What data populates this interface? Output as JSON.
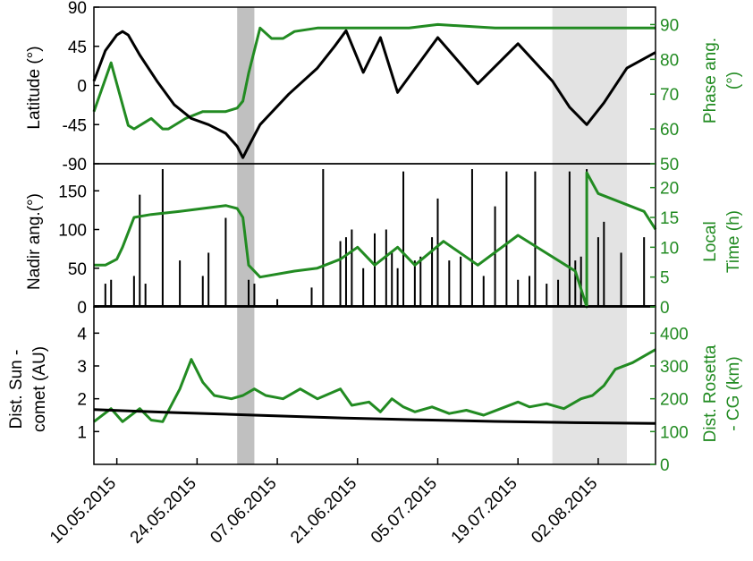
{
  "chart_data": {
    "type": "line",
    "x_start": "2015-05-06",
    "x_end": "2015-08-12",
    "x_ticks": [
      "10.05.2015",
      "24.05.2015",
      "07.06.2015",
      "21.06.2015",
      "05.07.2015",
      "19.07.2015",
      "02.08.2015"
    ],
    "x_tick_dates": [
      "2015-05-10",
      "2015-05-24",
      "2015-06-07",
      "2015-06-21",
      "2015-07-05",
      "2015-07-19",
      "2015-08-02"
    ],
    "shaded_periods": [
      {
        "start": "2015-05-31",
        "end": "2015-06-03",
        "color": "#c0c0c0"
      },
      {
        "start": "2015-07-25",
        "end": "2015-08-07",
        "color": "#e3e3e3"
      }
    ],
    "colors": {
      "left_series": "#000000",
      "right_series": "#228b22"
    },
    "panels": [
      {
        "left_axis": {
          "label": "Latitude (°)",
          "range": [
            -90,
            90
          ],
          "ticks": [
            90,
            45,
            0,
            -45,
            -90
          ]
        },
        "right_axis": {
          "label": [
            "Phase ang.",
            "(°)"
          ],
          "range": [
            50,
            95
          ],
          "ticks": [
            90,
            80,
            70,
            60,
            50
          ]
        },
        "left_series": [
          [
            "2015-05-06",
            5
          ],
          [
            "2015-05-08",
            40
          ],
          [
            "2015-05-10",
            58
          ],
          [
            "2015-05-11",
            62
          ],
          [
            "2015-05-12",
            58
          ],
          [
            "2015-05-14",
            35
          ],
          [
            "2015-05-17",
            5
          ],
          [
            "2015-05-20",
            -22
          ],
          [
            "2015-05-23",
            -38
          ],
          [
            "2015-05-26",
            -45
          ],
          [
            "2015-05-29",
            -55
          ],
          [
            "2015-05-31",
            -70
          ],
          [
            "2015-06-01",
            -83
          ],
          [
            "2015-06-02",
            -70
          ],
          [
            "2015-06-04",
            -45
          ],
          [
            "2015-06-09",
            -10
          ],
          [
            "2015-06-14",
            20
          ],
          [
            "2015-06-17",
            45
          ],
          [
            "2015-06-19",
            63
          ],
          [
            "2015-06-22",
            15
          ],
          [
            "2015-06-25",
            55
          ],
          [
            "2015-06-28",
            -8
          ],
          [
            "2015-07-05",
            55
          ],
          [
            "2015-07-12",
            2
          ],
          [
            "2015-07-19",
            48
          ],
          [
            "2015-07-25",
            5
          ],
          [
            "2015-07-28",
            -25
          ],
          [
            "2015-07-31",
            -45
          ],
          [
            "2015-08-03",
            -20
          ],
          [
            "2015-08-07",
            20
          ],
          [
            "2015-08-12",
            38
          ]
        ],
        "right_series": [
          [
            "2015-05-06",
            65
          ],
          [
            "2015-05-09",
            79
          ],
          [
            "2015-05-12",
            61
          ],
          [
            "2015-05-13",
            60
          ],
          [
            "2015-05-15",
            62
          ],
          [
            "2015-05-16",
            63
          ],
          [
            "2015-05-18",
            60
          ],
          [
            "2015-05-19",
            60
          ],
          [
            "2015-05-22",
            63
          ],
          [
            "2015-05-25",
            65
          ],
          [
            "2015-05-29",
            65
          ],
          [
            "2015-05-31",
            66
          ],
          [
            "2015-06-01",
            68
          ],
          [
            "2015-06-02",
            76
          ],
          [
            "2015-06-04",
            89
          ],
          [
            "2015-06-06",
            86
          ],
          [
            "2015-06-08",
            86
          ],
          [
            "2015-06-10",
            88
          ],
          [
            "2015-06-14",
            89
          ],
          [
            "2015-06-20",
            89
          ],
          [
            "2015-06-30",
            89
          ],
          [
            "2015-07-05",
            90
          ],
          [
            "2015-07-15",
            89
          ],
          [
            "2015-07-25",
            89
          ],
          [
            "2015-08-05",
            89
          ],
          [
            "2015-08-12",
            89
          ]
        ]
      },
      {
        "left_axis": {
          "label": "Nadir ang.(°)",
          "range": [
            0,
            185
          ],
          "ticks": [
            150,
            100,
            50,
            0
          ]
        },
        "right_axis": {
          "label": [
            "Local",
            "Time (h)"
          ],
          "range": [
            0,
            24
          ],
          "ticks": [
            20,
            15,
            10,
            5,
            0
          ]
        },
        "left_spikes": [
          [
            "2015-05-08",
            30
          ],
          [
            "2015-05-09",
            35
          ],
          [
            "2015-05-13",
            40
          ],
          [
            "2015-05-14",
            145
          ],
          [
            "2015-05-15",
            30
          ],
          [
            "2015-05-18",
            178
          ],
          [
            "2015-05-21",
            60
          ],
          [
            "2015-05-25",
            40
          ],
          [
            "2015-05-26",
            70
          ],
          [
            "2015-05-29",
            115
          ],
          [
            "2015-06-02",
            35
          ],
          [
            "2015-06-03",
            30
          ],
          [
            "2015-06-07",
            10
          ],
          [
            "2015-06-13",
            25
          ],
          [
            "2015-06-15",
            178
          ],
          [
            "2015-06-18",
            85
          ],
          [
            "2015-06-19",
            90
          ],
          [
            "2015-06-20",
            100
          ],
          [
            "2015-06-22",
            50
          ],
          [
            "2015-06-24",
            95
          ],
          [
            "2015-06-26",
            100
          ],
          [
            "2015-06-27",
            70
          ],
          [
            "2015-06-28",
            50
          ],
          [
            "2015-06-29",
            175
          ],
          [
            "2015-07-01",
            60
          ],
          [
            "2015-07-02",
            65
          ],
          [
            "2015-07-04",
            90
          ],
          [
            "2015-07-05",
            140
          ],
          [
            "2015-07-07",
            60
          ],
          [
            "2015-07-09",
            65
          ],
          [
            "2015-07-11",
            178
          ],
          [
            "2015-07-13",
            40
          ],
          [
            "2015-07-15",
            130
          ],
          [
            "2015-07-17",
            175
          ],
          [
            "2015-07-19",
            35
          ],
          [
            "2015-07-21",
            40
          ],
          [
            "2015-07-22",
            175
          ],
          [
            "2015-07-24",
            30
          ],
          [
            "2015-07-26",
            35
          ],
          [
            "2015-07-28",
            175
          ],
          [
            "2015-07-29",
            60
          ],
          [
            "2015-07-30",
            65
          ],
          [
            "2015-07-31",
            178
          ],
          [
            "2015-08-02",
            90
          ],
          [
            "2015-08-03",
            110
          ],
          [
            "2015-08-06",
            70
          ],
          [
            "2015-08-10",
            90
          ]
        ],
        "right_series": [
          [
            "2015-05-06",
            7
          ],
          [
            "2015-05-08",
            7
          ],
          [
            "2015-05-10",
            8
          ],
          [
            "2015-05-11",
            10
          ],
          [
            "2015-05-13",
            15
          ],
          [
            "2015-05-16",
            15.5
          ],
          [
            "2015-05-21",
            16
          ],
          [
            "2015-05-25",
            16.5
          ],
          [
            "2015-05-29",
            17
          ],
          [
            "2015-05-31",
            16.5
          ],
          [
            "2015-06-01",
            15
          ],
          [
            "2015-06-02",
            7
          ],
          [
            "2015-06-04",
            5
          ],
          [
            "2015-06-10",
            6
          ],
          [
            "2015-06-14",
            6.5
          ],
          [
            "2015-06-18",
            8
          ],
          [
            "2015-06-21",
            10
          ],
          [
            "2015-06-24",
            7
          ],
          [
            "2015-06-28",
            10
          ],
          [
            "2015-07-01",
            7
          ],
          [
            "2015-07-06",
            11
          ],
          [
            "2015-07-12",
            7
          ],
          [
            "2015-07-19",
            12
          ],
          [
            "2015-07-24",
            9
          ],
          [
            "2015-07-29",
            6
          ],
          [
            "2015-07-31",
            0
          ],
          [
            "2015-07-31",
            22.5
          ],
          [
            "2015-08-02",
            19
          ],
          [
            "2015-08-06",
            17.5
          ],
          [
            "2015-08-10",
            16
          ],
          [
            "2015-08-12",
            13
          ]
        ]
      },
      {
        "left_axis": {
          "label": [
            "Dist. Sun -",
            "comet (AU)"
          ],
          "range": [
            0,
            4.8
          ],
          "ticks": [
            4,
            3,
            2,
            1
          ]
        },
        "right_axis": {
          "label": [
            "Dist. Rosetta",
            "- CG (km)"
          ],
          "range": [
            0,
            480
          ],
          "ticks": [
            400,
            300,
            200,
            100,
            0
          ]
        },
        "left_series": [
          [
            "2015-05-06",
            1.67
          ],
          [
            "2015-05-20",
            1.58
          ],
          [
            "2015-06-03",
            1.5
          ],
          [
            "2015-06-17",
            1.42
          ],
          [
            "2015-07-01",
            1.36
          ],
          [
            "2015-07-15",
            1.31
          ],
          [
            "2015-07-29",
            1.27
          ],
          [
            "2015-08-12",
            1.25
          ]
        ],
        "right_series": [
          [
            "2015-05-06",
            130
          ],
          [
            "2015-05-09",
            170
          ],
          [
            "2015-05-11",
            130
          ],
          [
            "2015-05-14",
            170
          ],
          [
            "2015-05-16",
            135
          ],
          [
            "2015-05-18",
            130
          ],
          [
            "2015-05-21",
            230
          ],
          [
            "2015-05-23",
            320
          ],
          [
            "2015-05-25",
            250
          ],
          [
            "2015-05-27",
            210
          ],
          [
            "2015-05-30",
            200
          ],
          [
            "2015-06-01",
            210
          ],
          [
            "2015-06-03",
            230
          ],
          [
            "2015-06-05",
            210
          ],
          [
            "2015-06-08",
            200
          ],
          [
            "2015-06-11",
            230
          ],
          [
            "2015-06-14",
            200
          ],
          [
            "2015-06-18",
            230
          ],
          [
            "2015-06-20",
            180
          ],
          [
            "2015-06-23",
            190
          ],
          [
            "2015-06-25",
            160
          ],
          [
            "2015-06-27",
            200
          ],
          [
            "2015-06-29",
            175
          ],
          [
            "2015-07-01",
            160
          ],
          [
            "2015-07-04",
            175
          ],
          [
            "2015-07-07",
            155
          ],
          [
            "2015-07-10",
            165
          ],
          [
            "2015-07-13",
            150
          ],
          [
            "2015-07-16",
            170
          ],
          [
            "2015-07-19",
            190
          ],
          [
            "2015-07-21",
            175
          ],
          [
            "2015-07-24",
            185
          ],
          [
            "2015-07-27",
            170
          ],
          [
            "2015-07-30",
            200
          ],
          [
            "2015-08-01",
            210
          ],
          [
            "2015-08-03",
            240
          ],
          [
            "2015-08-05",
            290
          ],
          [
            "2015-08-08",
            310
          ],
          [
            "2015-08-11",
            340
          ],
          [
            "2015-08-12",
            350
          ]
        ]
      }
    ]
  }
}
